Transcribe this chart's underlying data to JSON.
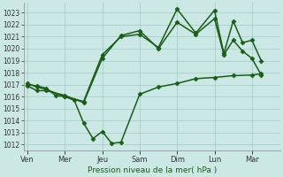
{
  "xlabel": "Pression niveau de la mer( hPa )",
  "ylim": [
    1011.5,
    1023.8
  ],
  "yticks": [
    1012,
    1013,
    1014,
    1015,
    1016,
    1017,
    1018,
    1019,
    1020,
    1021,
    1022,
    1023
  ],
  "background_color": "#cce8e4",
  "grid_color": "#aacfcb",
  "line_color": "#1a5c1a",
  "day_labels": [
    "Ven",
    "Mer",
    "Jeu",
    "Sam",
    "Dim",
    "Lun",
    "Mar"
  ],
  "day_positions": [
    0,
    2,
    4,
    6,
    8,
    10,
    12
  ],
  "xlim": [
    -0.2,
    13.5
  ],
  "series": [
    {
      "x": [
        0,
        0.5,
        1,
        1.5,
        2,
        2.5,
        3,
        3.5,
        4,
        4.5,
        5,
        6,
        7,
        8,
        9,
        10,
        11,
        12,
        12.5
      ],
      "y": [
        1017.0,
        1016.9,
        1016.7,
        1016.1,
        1016.0,
        1015.7,
        1013.8,
        1012.5,
        1013.1,
        1012.1,
        1012.2,
        1016.2,
        1016.8,
        1017.1,
        1017.5,
        1017.6,
        1017.75,
        1017.8,
        1017.9
      ],
      "linewidth": 1.1
    },
    {
      "x": [
        0,
        0.5,
        1,
        2,
        3,
        4,
        5,
        6,
        7,
        8,
        9,
        10,
        10.5,
        11,
        11.5,
        12,
        12.5
      ],
      "y": [
        1016.9,
        1016.5,
        1016.5,
        1016.1,
        1015.5,
        1019.2,
        1021.1,
        1021.5,
        1020.0,
        1022.2,
        1021.2,
        1022.5,
        1019.5,
        1020.7,
        1019.8,
        1019.2,
        1017.8
      ],
      "linewidth": 1.1
    },
    {
      "x": [
        0,
        0.5,
        1,
        2,
        3,
        4,
        5,
        6,
        7,
        8,
        9,
        10,
        10.5,
        11,
        11.5,
        12,
        12.5
      ],
      "y": [
        1017.1,
        1016.8,
        1016.6,
        1016.0,
        1015.6,
        1019.5,
        1021.0,
        1021.2,
        1020.1,
        1023.3,
        1021.3,
        1023.2,
        1019.6,
        1022.3,
        1020.5,
        1020.7,
        1019.0
      ],
      "linewidth": 1.1
    }
  ],
  "figsize": [
    3.2,
    2.0
  ],
  "dpi": 100,
  "markersize": 2.5,
  "marker": "D"
}
